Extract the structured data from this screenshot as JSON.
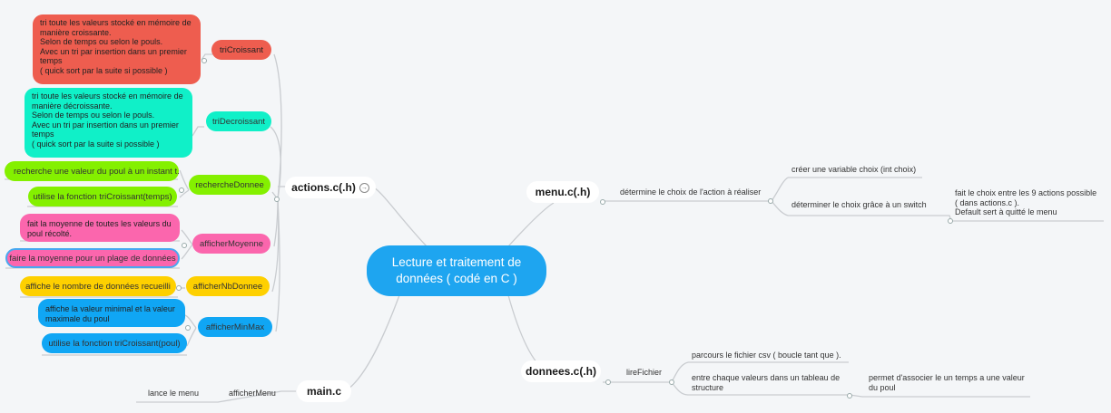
{
  "center": {
    "label": "Lecture et traitement de\ndonnées ( codé en C )"
  },
  "actions": {
    "label": "actions.c(.h)",
    "collapse_icon": "arrow-right-circle-icon",
    "triCroissant": {
      "label": "triCroissant",
      "note": "tri toute les valeurs stocké en mémoire de\nmanière croissante.\nSelon de temps ou selon le pouls.\nAvec un tri par insertion dans un premier\ntemps\n( quick sort par la suite si possible )"
    },
    "triDecroissant": {
      "label": "triDecroissant",
      "note": "tri toute les valeurs stocké en mémoire de\nmanière décroissante.\nSelon de temps ou selon le pouls.\nAvec un tri par insertion dans un premier\ntemps\n( quick sort par la suite si possible )"
    },
    "rechercheDonnee": {
      "label": "rechercheDonnee",
      "items": [
        "recherche une valeur du poul à un instant t.",
        "utilise la fonction triCroissant(temps)"
      ]
    },
    "afficherMoyenne": {
      "label": "afficherMoyenne",
      "items": [
        "fait la moyenne de toutes les valeurs du\npoul récolté.",
        "faire la moyenne pour un plage de données"
      ]
    },
    "afficherNbDonnee": {
      "label": "afficherNbDonnee",
      "items": [
        "affiche le nombre de données recueilli"
      ]
    },
    "afficherMinMax": {
      "label": "afficherMinMax",
      "items": [
        "affiche la valeur minimal et la valeur\nmaximale du poul",
        "utilise la fonction triCroissant(poul)"
      ]
    }
  },
  "main": {
    "label": "main.c",
    "afficherMenu": {
      "label": "afficherMenu",
      "items": [
        "lance le menu"
      ]
    }
  },
  "menu": {
    "label": "menu.c(.h)",
    "child": "détermine le choix de l'action à réaliser",
    "items": [
      "créer une variable choix (int choix)",
      "déterminer le choix grâce à un switch"
    ],
    "detail": "fait le choix entre les 9 actions possible\n( dans actions.c ).\nDefault sert à quitté le menu"
  },
  "donnees": {
    "label": "donnees.c(.h)",
    "child": "lireFichier",
    "items": [
      "parcours le fichier csv ( boucle tant que ).",
      "entre chaque valeurs dans un tableau de\nstructure"
    ],
    "detail": "permet d'associer le un temps a une valeur\ndu poul"
  },
  "colors": {
    "center": "#1ea5f0",
    "triCroissant": "#ee5d4f",
    "triDecroissant": "#10f0c8",
    "rechercheDonnee": "#84f000",
    "afficherMoyenne": "#fb66ad",
    "afficherNbDonnee": "#fed000",
    "afficherMinMax": "#10a6f4",
    "line": "#c9ccd0"
  }
}
